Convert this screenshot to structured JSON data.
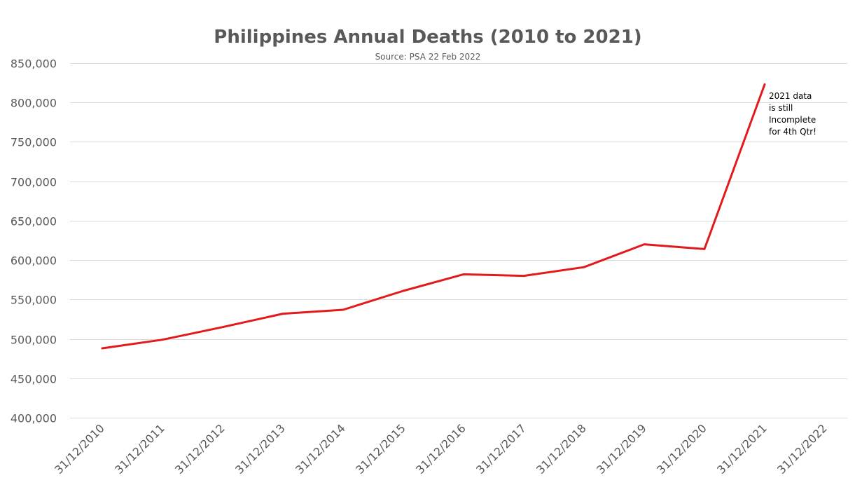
{
  "chart_data": {
    "type": "line",
    "title": "Philippines Annual Deaths  (2010 to 2021)",
    "subtitle": "Source:  PSA  22 Feb 2022",
    "categories": [
      "31/12/2010",
      "31/12/2011",
      "31/12/2012",
      "31/12/2013",
      "31/12/2014",
      "31/12/2015",
      "31/12/2016",
      "31/12/2017",
      "31/12/2018",
      "31/12/2019",
      "31/12/2020",
      "31/12/2021",
      "31/12/2022"
    ],
    "series": [
      {
        "color": "#e31a1c",
        "values": [
          488000,
          499000,
          515000,
          532000,
          537000,
          561000,
          582000,
          580000,
          591000,
          620000,
          614000,
          823000,
          null
        ]
      }
    ],
    "ylim": [
      400000,
      850000
    ],
    "yticks": [
      400000,
      450000,
      500000,
      550000,
      600000,
      650000,
      700000,
      750000,
      800000,
      850000
    ],
    "ytick_labels": [
      "400,000",
      "450,000",
      "500,000",
      "550,000",
      "600,000",
      "650,000",
      "700,000",
      "750,000",
      "800,000",
      "850,000"
    ],
    "grid": true,
    "annotations": [
      {
        "category": "31/12/2021",
        "lines": [
          "2021  data",
          "is still",
          "Incomplete",
          "for 4th Qtr!"
        ]
      }
    ]
  }
}
